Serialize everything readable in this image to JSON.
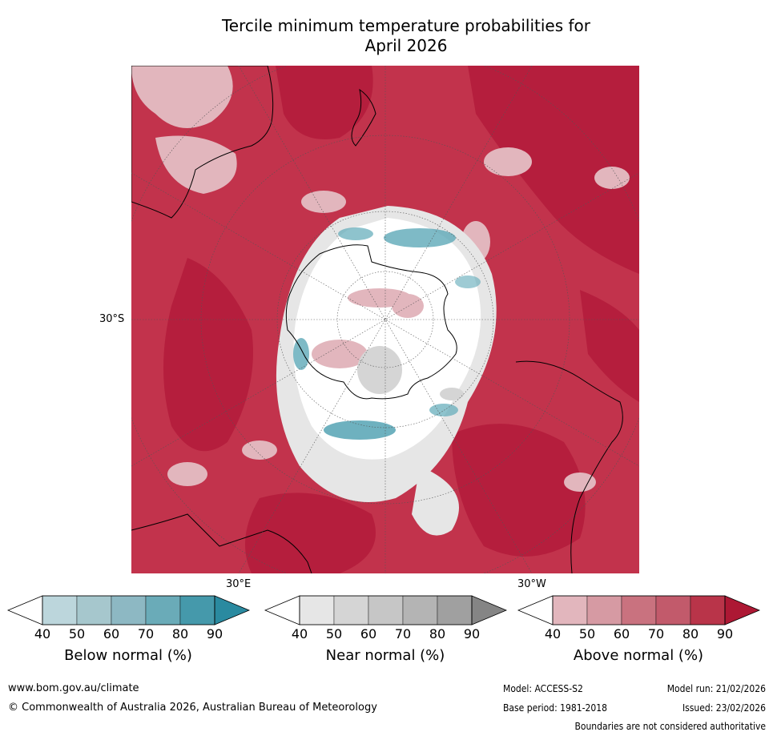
{
  "title": {
    "line1": "Tercile minimum temperature probabilities for",
    "line2": "April 2026"
  },
  "map": {
    "projection": "south-polar-stereographic",
    "labels": {
      "lat_30s": "30°S",
      "lon_30e": "30°E",
      "lon_30w": "30°W"
    },
    "colors": {
      "ocean_base": "#c2334c",
      "strong_above": "#b51e3d",
      "light_above": "#e2b6bd",
      "near_normal": "#e6e6e6",
      "white": "#ffffff",
      "below": "#5ea9b8",
      "coast": "#000000"
    }
  },
  "colorbars": [
    {
      "name": "below",
      "title": "Below normal (%)",
      "ticks": [
        "40",
        "50",
        "60",
        "70",
        "80",
        "90"
      ],
      "colors": [
        "#ffffff",
        "#bcd6dc",
        "#a6c7cd",
        "#8db8c3",
        "#6aabb8",
        "#4599ab",
        "#2a8aa0"
      ]
    },
    {
      "name": "near",
      "title": "Near normal (%)",
      "ticks": [
        "40",
        "50",
        "60",
        "70",
        "80",
        "90"
      ],
      "colors": [
        "#ffffff",
        "#e6e6e6",
        "#d5d5d5",
        "#c6c6c6",
        "#b4b4b4",
        "#a0a0a0",
        "#858585"
      ]
    },
    {
      "name": "above",
      "title": "Above normal (%)",
      "ticks": [
        "40",
        "50",
        "60",
        "70",
        "80",
        "90"
      ],
      "colors": [
        "#ffffff",
        "#e2b6bd",
        "#d69aa3",
        "#c9727f",
        "#c25a6b",
        "#b93449",
        "#ad1834"
      ]
    }
  ],
  "footer": {
    "website": "www.bom.gov.au/climate",
    "copyright": "© Commonwealth of Australia 2026, Australian Bureau of Meteorology",
    "model": "Model: ACCESS-S2",
    "model_run": "Model run: 21/02/2026",
    "base_period": "Base period: 1981-2018",
    "issued": "Issued: 23/02/2026",
    "disclaimer": "Boundaries are not considered authoritative"
  }
}
